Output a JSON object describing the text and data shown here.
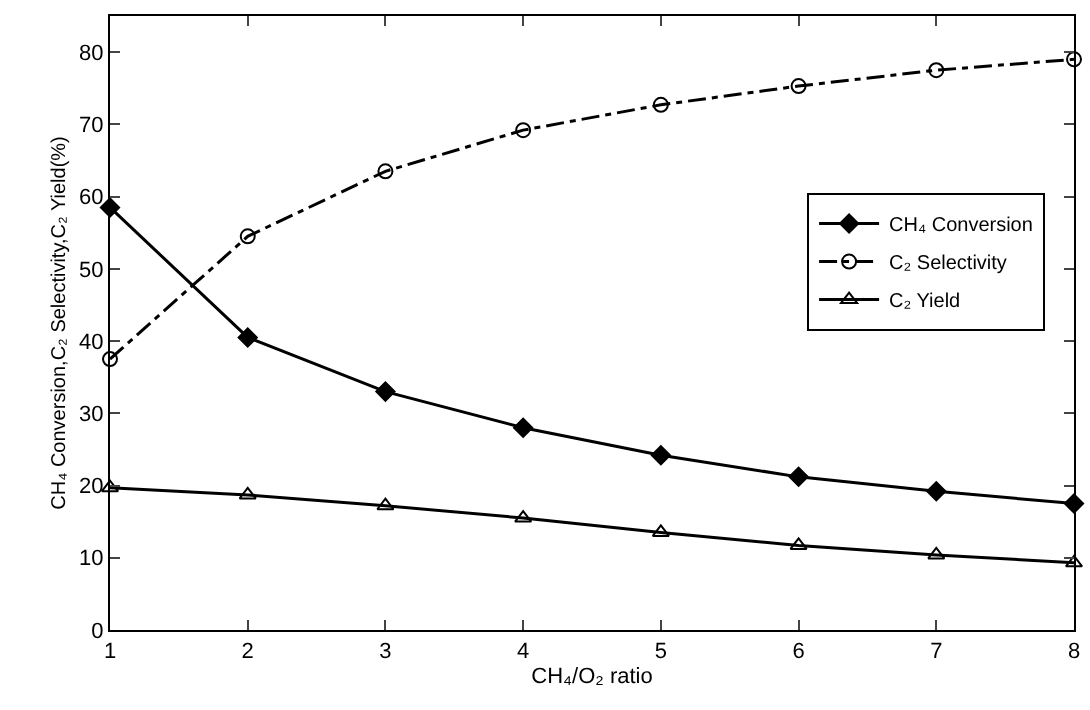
{
  "chart_data": {
    "type": "line",
    "xlabel": "CH₄/O₂ ratio",
    "ylabel": "CH₄ Conversion,C₂ Selectivity,C₂ Yield(%)",
    "x": [
      1,
      2,
      3,
      4,
      5,
      6,
      7,
      8
    ],
    "series": [
      {
        "name": "CH₄ Conversion",
        "color": "#000000",
        "marker": "diamond",
        "line_style": "solid",
        "values": [
          58.5,
          40.5,
          33,
          28,
          24.2,
          21.2,
          19.2,
          17.5
        ]
      },
      {
        "name": "C₂ Selectivity",
        "color": "#000000",
        "marker": "circle",
        "line_style": "dashed",
        "values": [
          37.5,
          54.5,
          63.5,
          69.2,
          72.7,
          75.3,
          77.5,
          79
        ]
      },
      {
        "name": "C₂ Yield",
        "color": "#000000",
        "marker": "triangle",
        "line_style": "solid",
        "values": [
          19.7,
          18.7,
          17.2,
          15.5,
          13.5,
          11.7,
          10.4,
          9.3
        ]
      }
    ],
    "xlim": [
      1,
      8
    ],
    "xticks": [
      1,
      2,
      3,
      4,
      5,
      6,
      7,
      8
    ],
    "ylim": [
      0,
      85
    ],
    "yticks": [
      0,
      10,
      20,
      30,
      40,
      50,
      60,
      70,
      80
    ],
    "grid": false,
    "legend": "right"
  }
}
